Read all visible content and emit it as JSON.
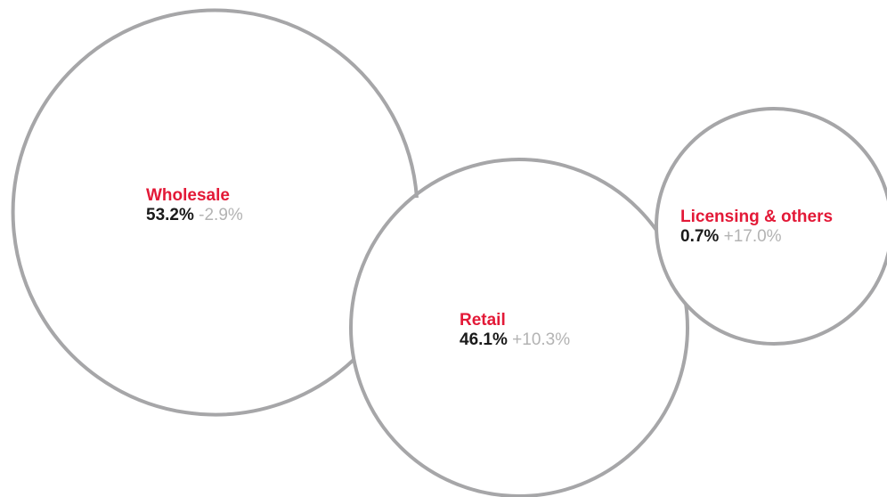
{
  "colors": {
    "label": "#e31937",
    "share": "#1a1a1a",
    "change": "#b3b3b3",
    "circle_stroke": "#a6a6a8"
  },
  "chart_data": {
    "type": "bubble",
    "title": "",
    "legend": "none",
    "grid": false,
    "series": [
      {
        "name": "Wholesale",
        "share": 53.2,
        "share_label": "53.2%",
        "change": -2.9,
        "change_label": "-2.9%"
      },
      {
        "name": "Retail",
        "share": 46.1,
        "share_label": "46.1%",
        "change": 10.3,
        "change_label": "+10.3%"
      },
      {
        "name": "Licensing & others",
        "share": 0.7,
        "share_label": "0.7%",
        "change": 17.0,
        "change_label": "+17.0%"
      }
    ]
  }
}
